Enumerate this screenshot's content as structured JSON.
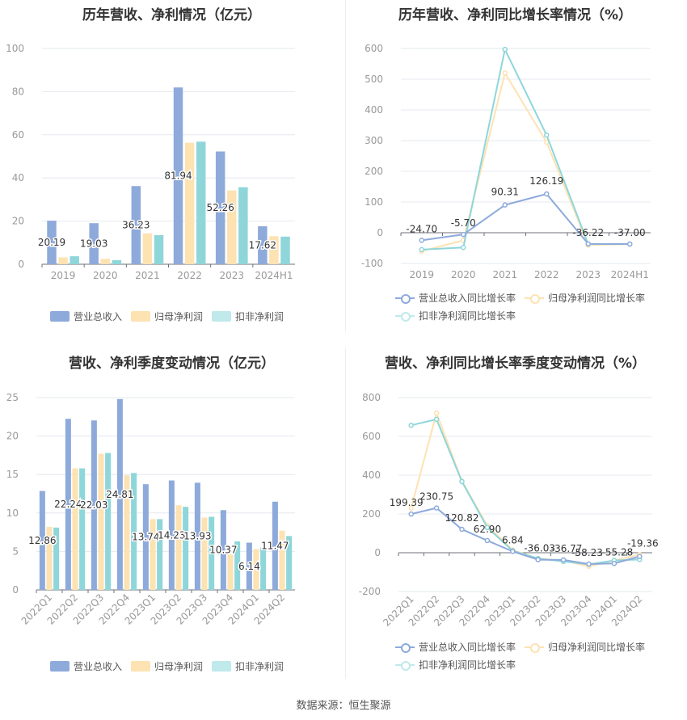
{
  "colors": {
    "revenue": "#8eaadb",
    "netprofit": "#fde2b2",
    "deducted": "#8ed6da",
    "grid": "#e6e8ef",
    "axis": "#999999",
    "label": "#333333"
  },
  "legend": {
    "bar": [
      "营业总收入",
      "归母净利润",
      "扣非净利润"
    ],
    "line": [
      "营业总收入同比增长率",
      "归母净利润同比增长率",
      "扣非净利润同比增长率"
    ]
  },
  "source": "数据来源：恒生聚源",
  "chart_data": [
    {
      "id": "annual-bar",
      "type": "bar",
      "title": "历年营收、净利情况（亿元）",
      "categories": [
        "2019",
        "2020",
        "2021",
        "2022",
        "2023",
        "2024H1"
      ],
      "series": [
        {
          "name": "营业总收入",
          "values": [
            20.19,
            19.03,
            36.23,
            81.94,
            52.26,
            17.62
          ]
        },
        {
          "name": "归母净利润",
          "values": [
            3.2,
            2.5,
            14.3,
            56.3,
            34.2,
            13.0
          ]
        },
        {
          "name": "扣非净利润",
          "values": [
            3.7,
            1.9,
            13.5,
            56.8,
            35.7,
            12.8
          ]
        }
      ],
      "data_labels": [
        "20.19",
        "19.03",
        "36.23",
        "81.94",
        "52.26",
        "17.62"
      ],
      "yticks": [
        "0",
        "20",
        "40",
        "60",
        "80",
        "100"
      ],
      "ylim": [
        0,
        100
      ],
      "grid": true,
      "legend": "bottom"
    },
    {
      "id": "annual-line",
      "type": "line",
      "title": "历年营收、净利同比增长率情况（%）",
      "categories": [
        "2019",
        "2020",
        "2021",
        "2022",
        "2023",
        "2024H1"
      ],
      "series": [
        {
          "name": "营业总收入同比增长率",
          "values": [
            -24.7,
            -5.7,
            90.31,
            126.19,
            -36.22,
            -37.0
          ]
        },
        {
          "name": "归母净利润同比增长率",
          "values": [
            -60,
            -25,
            520,
            295,
            -40,
            -37
          ]
        },
        {
          "name": "扣非净利润同比增长率",
          "values": [
            -55,
            -48,
            597,
            318,
            -37,
            -37
          ]
        }
      ],
      "data_labels": [
        "-24.70",
        "-5.70",
        "90.31",
        "126.19",
        "-36.22",
        "-37.00"
      ],
      "yticks": [
        "-100",
        "0",
        "100",
        "200",
        "300",
        "400",
        "500",
        "600"
      ],
      "ylim": [
        -100,
        600
      ],
      "grid": true,
      "legend": "bottom"
    },
    {
      "id": "quarter-bar",
      "type": "bar",
      "title": "营收、净利季度变动情况（亿元）",
      "categories": [
        "2022Q1",
        "2022Q2",
        "2022Q3",
        "2022Q4",
        "2023Q1",
        "2023Q2",
        "2023Q3",
        "2023Q4",
        "2024Q1",
        "2024Q2"
      ],
      "series": [
        {
          "name": "营业总收入",
          "values": [
            12.86,
            22.24,
            22.03,
            24.81,
            13.74,
            14.23,
            13.93,
            10.37,
            6.14,
            11.47
          ]
        },
        {
          "name": "归母净利润",
          "values": [
            8.2,
            15.8,
            17.7,
            14.9,
            9.2,
            11.0,
            9.4,
            4.6,
            5.3,
            7.7
          ]
        },
        {
          "name": "扣非净利润",
          "values": [
            8.1,
            15.8,
            17.8,
            15.2,
            9.2,
            10.8,
            9.5,
            6.3,
            5.5,
            7.0
          ]
        }
      ],
      "data_labels": [
        "12.86",
        "22.24",
        "22.03",
        "24.81",
        "13.74",
        "14.23",
        "13.93",
        "10.37",
        "6.14",
        "11.47"
      ],
      "yticks": [
        "0",
        "5",
        "10",
        "15",
        "20",
        "25"
      ],
      "ylim": [
        0,
        25
      ],
      "grid": true,
      "legend": "bottom"
    },
    {
      "id": "quarter-line",
      "type": "line",
      "title": "营收、净利同比增长率季度变动情况（%）",
      "categories": [
        "2022Q1",
        "2022Q2",
        "2022Q3",
        "2022Q4",
        "2023Q1",
        "2023Q2",
        "2023Q3",
        "2023Q4",
        "2024Q1",
        "2024Q2"
      ],
      "series": [
        {
          "name": "营业总收入同比增长率",
          "values": [
            199.39,
            230.75,
            120.82,
            62.9,
            6.84,
            -36.03,
            -36.77,
            -58.23,
            -55.28,
            -19.36
          ]
        },
        {
          "name": "归母净利润同比增长率",
          "values": [
            230,
            720,
            370,
            140,
            14,
            -30,
            -40,
            -70,
            -40,
            -10
          ]
        },
        {
          "name": "扣非净利润同比增长率",
          "values": [
            657,
            688,
            367,
            130,
            10,
            -30,
            -45,
            -60,
            -40,
            -35
          ]
        }
      ],
      "data_labels": [
        "199.39",
        "230.75",
        "120.82",
        "62.90",
        "6.84",
        "-36.03",
        "-36.77",
        "-58.23",
        "-55.28",
        "-19.36"
      ],
      "yticks": [
        "-200",
        "0",
        "200",
        "400",
        "600",
        "800"
      ],
      "ylim": [
        -200,
        800
      ],
      "grid": true,
      "legend": "bottom"
    }
  ]
}
